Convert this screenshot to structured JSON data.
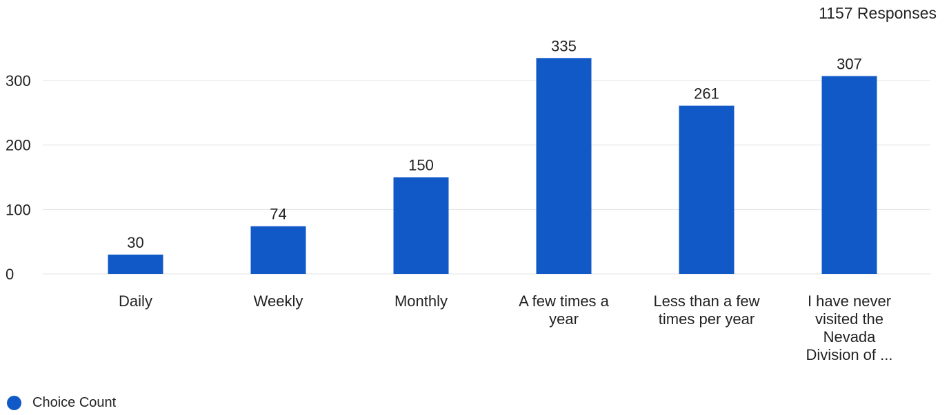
{
  "header": {
    "responses": "1157 Responses"
  },
  "legend": {
    "label": "Choice Count",
    "icon": "legend-dot-icon"
  },
  "colors": {
    "bar": "#1259c8",
    "grid": "#e3e3e3",
    "text": "#222222"
  },
  "chart_data": {
    "type": "bar",
    "categories": [
      "Daily",
      "Weekly",
      "Monthly",
      "A few times a year",
      "Less than a few times per year",
      "I have never visited the Nevada Division of ..."
    ],
    "category_lines": [
      [
        "Daily"
      ],
      [
        "Weekly"
      ],
      [
        "Monthly"
      ],
      [
        "A few times a",
        "year"
      ],
      [
        "Less than a few",
        "times per year"
      ],
      [
        "I have never",
        "visited the",
        "Nevada",
        "Division of ..."
      ]
    ],
    "series": [
      {
        "name": "Choice Count",
        "values": [
          30,
          74,
          150,
          335,
          261,
          307
        ]
      }
    ],
    "value_labels": [
      "30",
      "74",
      "150",
      "335",
      "261",
      "307"
    ],
    "yticks": [
      0,
      100,
      200,
      300
    ],
    "ytick_labels": [
      "0",
      "100",
      "200",
      "300"
    ],
    "ylim": [
      0,
      350
    ],
    "grid": true,
    "legend_position": "bottom-left",
    "title": "",
    "xlabel": "",
    "ylabel": ""
  }
}
